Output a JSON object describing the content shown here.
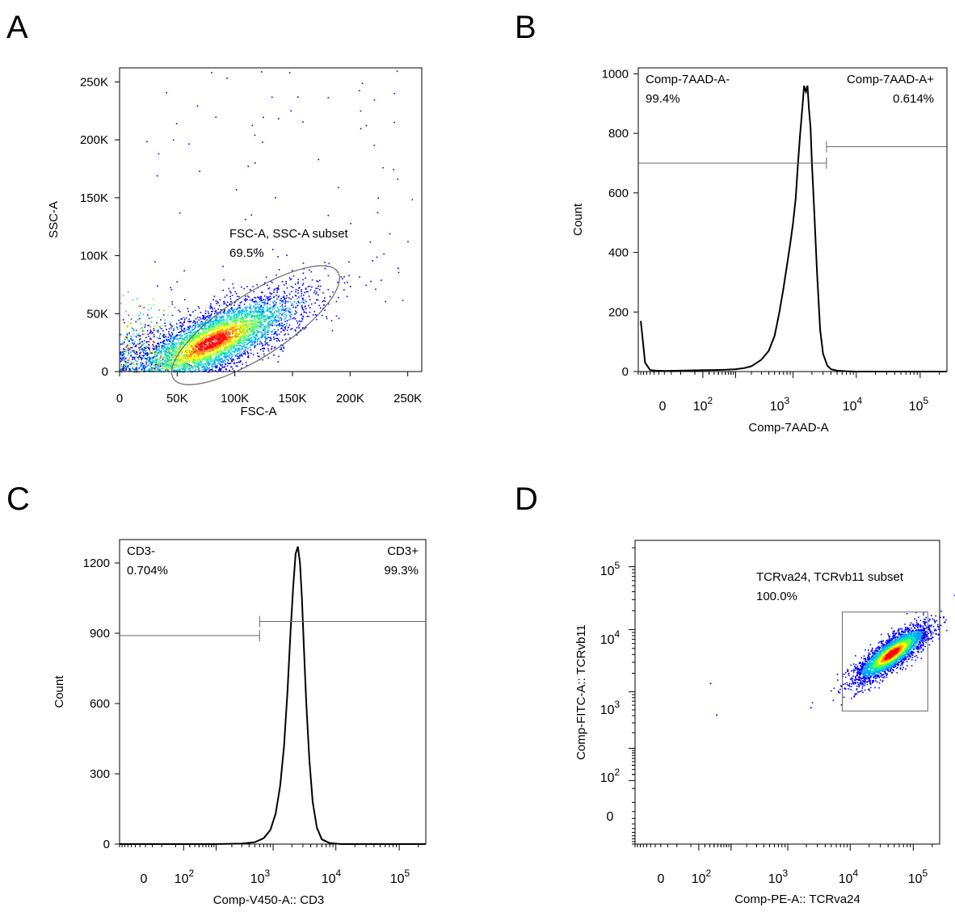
{
  "panels": [
    {
      "letter": "A"
    },
    {
      "letter": "B"
    },
    {
      "letter": "C"
    },
    {
      "letter": "D"
    }
  ],
  "chart_data": [
    {
      "panel": "A",
      "type": "scatter",
      "xlabel": "FSC-A",
      "ylabel": "SSC-A",
      "xlim": [
        0,
        262144
      ],
      "ylim": [
        0,
        262144
      ],
      "xticks": [
        {
          "v": 0,
          "label": "0"
        },
        {
          "v": 50000,
          "label": "50K"
        },
        {
          "v": 100000,
          "label": "100K"
        },
        {
          "v": 150000,
          "label": "150K"
        },
        {
          "v": 200000,
          "label": "200K"
        },
        {
          "v": 250000,
          "label": "250K"
        }
      ],
      "yticks": [
        {
          "v": 0,
          "label": "0"
        },
        {
          "v": 50000,
          "label": "50K"
        },
        {
          "v": 100000,
          "label": "100K"
        },
        {
          "v": 150000,
          "label": "150K"
        },
        {
          "v": 200000,
          "label": "200K"
        },
        {
          "v": 250000,
          "label": "250K"
        }
      ],
      "density": {
        "center": [
          80000,
          26000
        ],
        "spread": [
          48000,
          14000
        ],
        "slope": 0.42
      },
      "gate": {
        "shape": "ellipse",
        "center": [
          118000,
          40000
        ],
        "radii": [
          85000,
          27000
        ],
        "angle": 33,
        "name": "FSC-A, SSC-A subset",
        "percent": "69.5%"
      }
    },
    {
      "panel": "B",
      "type": "line",
      "xscale": "biexponential",
      "xlabel": "Comp-7AAD-A",
      "ylabel": "Count",
      "ylim": [
        0,
        1020
      ],
      "xticks": [
        {
          "v": 0,
          "base": "0",
          "exp": ""
        },
        {
          "v": 100,
          "base": "10",
          "exp": "2"
        },
        {
          "v": 1000,
          "base": "10",
          "exp": "3"
        },
        {
          "v": 10000,
          "base": "10",
          "exp": "4"
        },
        {
          "v": 100000,
          "base": "10",
          "exp": "5"
        }
      ],
      "yticks": [
        {
          "v": 0,
          "label": "0"
        },
        {
          "v": 200,
          "label": "200"
        },
        {
          "v": 400,
          "label": "400"
        },
        {
          "v": 600,
          "label": "600"
        },
        {
          "v": 800,
          "label": "800"
        },
        {
          "v": 1000,
          "label": "1000"
        }
      ],
      "x": [
        -180,
        -150,
        -120,
        -90,
        -60,
        0,
        60,
        100,
        150,
        200,
        300,
        400,
        500,
        600,
        700,
        800,
        900,
        1000,
        1100,
        1200,
        1300,
        1400,
        1500,
        1600,
        1700,
        1800,
        1900,
        2000,
        2200,
        2400,
        2700,
        3000,
        3500,
        4000,
        5000,
        7000,
        10000,
        30000,
        100000,
        260000
      ],
      "y": [
        170,
        30,
        5,
        3,
        2,
        4,
        6,
        8,
        12,
        18,
        40,
        70,
        120,
        200,
        280,
        360,
        430,
        500,
        580,
        700,
        800,
        880,
        960,
        940,
        960,
        880,
        820,
        700,
        520,
        340,
        140,
        60,
        20,
        8,
        3,
        1,
        0,
        0,
        0,
        0
      ],
      "gates": [
        {
          "name": "Comp-7AAD-A-",
          "percent": "99.4%",
          "range": [
            -200,
            3400
          ],
          "level": 700
        },
        {
          "name": "Comp-7AAD-A+",
          "percent": "0.614%",
          "range": [
            3400,
            262144
          ],
          "level": 755
        }
      ]
    },
    {
      "panel": "C",
      "type": "line",
      "xscale": "biexponential",
      "xlabel": "Comp-V450-A:: CD3",
      "ylabel": "Count",
      "ylim": [
        0,
        1300
      ],
      "xticks": [
        {
          "v": 0,
          "base": "0",
          "exp": ""
        },
        {
          "v": 100,
          "base": "10",
          "exp": "2"
        },
        {
          "v": 1000,
          "base": "10",
          "exp": "3"
        },
        {
          "v": 10000,
          "base": "10",
          "exp": "4"
        },
        {
          "v": 100000,
          "base": "10",
          "exp": "5"
        }
      ],
      "yticks": [
        {
          "v": 0,
          "label": "0"
        },
        {
          "v": 300,
          "label": "300"
        },
        {
          "v": 600,
          "label": "600"
        },
        {
          "v": 900,
          "label": "900"
        },
        {
          "v": 1200,
          "label": "1200"
        }
      ],
      "x": [
        -200,
        0,
        100,
        300,
        500,
        700,
        900,
        1100,
        1300,
        1500,
        1700,
        1900,
        2100,
        2300,
        2500,
        2700,
        2900,
        3100,
        3400,
        3800,
        4300,
        5000,
        6000,
        8000,
        12000,
        30000,
        100000,
        260000
      ],
      "y": [
        0,
        0,
        0,
        2,
        8,
        25,
        60,
        130,
        250,
        420,
        650,
        900,
        1100,
        1240,
        1270,
        1200,
        1050,
        850,
        600,
        360,
        180,
        70,
        20,
        4,
        0,
        0,
        0,
        0
      ],
      "gates": [
        {
          "name": "CD3-",
          "percent": "0.704%",
          "range": [
            -200,
            600
          ],
          "level": 890
        },
        {
          "name": "CD3+",
          "percent": "99.3%",
          "range": [
            600,
            262144
          ],
          "level": 950
        }
      ]
    },
    {
      "panel": "D",
      "type": "scatter",
      "xscale": "biexponential",
      "yscale": "biexponential",
      "xlabel": "Comp-PE-A:: TCRva24",
      "ylabel": "Comp-FITC-A:: TCRvb11",
      "xticks": [
        {
          "v": 0,
          "base": "0",
          "exp": ""
        },
        {
          "v": 100,
          "base": "10",
          "exp": "2"
        },
        {
          "v": 1000,
          "base": "10",
          "exp": "3"
        },
        {
          "v": 10000,
          "base": "10",
          "exp": "4"
        },
        {
          "v": 100000,
          "base": "10",
          "exp": "5"
        }
      ],
      "yticks": [
        {
          "v": 0,
          "base": "0",
          "exp": ""
        },
        {
          "v": 100,
          "base": "10",
          "exp": "2"
        },
        {
          "v": 1000,
          "base": "10",
          "exp": "3"
        },
        {
          "v": 10000,
          "base": "10",
          "exp": "4"
        },
        {
          "v": 100000,
          "base": "10",
          "exp": "5"
        }
      ],
      "density": {
        "center": [
          45000,
          4200
        ],
        "spread_log": [
          0.28,
          0.24
        ]
      },
      "outliers": [
        [
          30,
          1400
        ],
        [
          45,
          420
        ],
        [
          2300,
          560
        ]
      ],
      "gate": {
        "shape": "rectangle",
        "x": [
          7500,
          170000
        ],
        "y": [
          480,
          19000
        ],
        "name": "TCRva24, TCRvb11 subset",
        "percent": "100.0%"
      }
    }
  ],
  "colors": {
    "axis": "#000000",
    "gate": "#666666",
    "histogram": "#000000",
    "density": [
      "#0000ff",
      "#00a0ff",
      "#00e0c0",
      "#60ff40",
      "#ffff00",
      "#ff9000",
      "#ff0000"
    ]
  }
}
